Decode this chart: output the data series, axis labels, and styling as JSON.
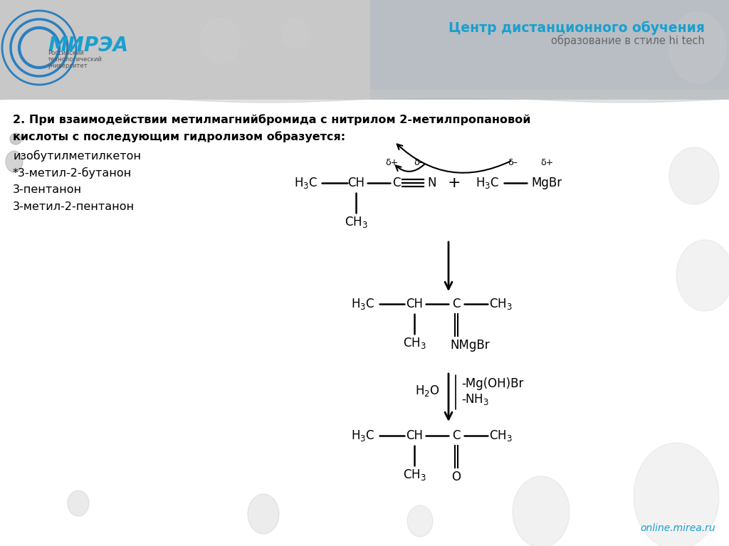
{
  "bg_color": "#ffffff",
  "header_color": "#c0c0c0",
  "title_color": "#1a9fce",
  "text_color": "#000000",
  "header_text1": "Центр дистанционного обучения",
  "header_text2": "образование в стиле hi tech",
  "footer_text": "online.mirea.ru",
  "question_bold": "2. При взаимодействии метилмагнийбромида с нитрилом 2-метилпропановой",
  "question_bold2": "кислоты с последующим гидролизом образуется:",
  "answer1": "изобутилметилкетон",
  "answer2": "*3-метил-2-бутанон",
  "answer3": "3-пентанон",
  "answer4": "3-метил-2-пентанон",
  "mirea_text": "МИРЭА",
  "mirea_sub1": "Российский",
  "mirea_sub2": "технологический",
  "mirea_sub3": "университет"
}
